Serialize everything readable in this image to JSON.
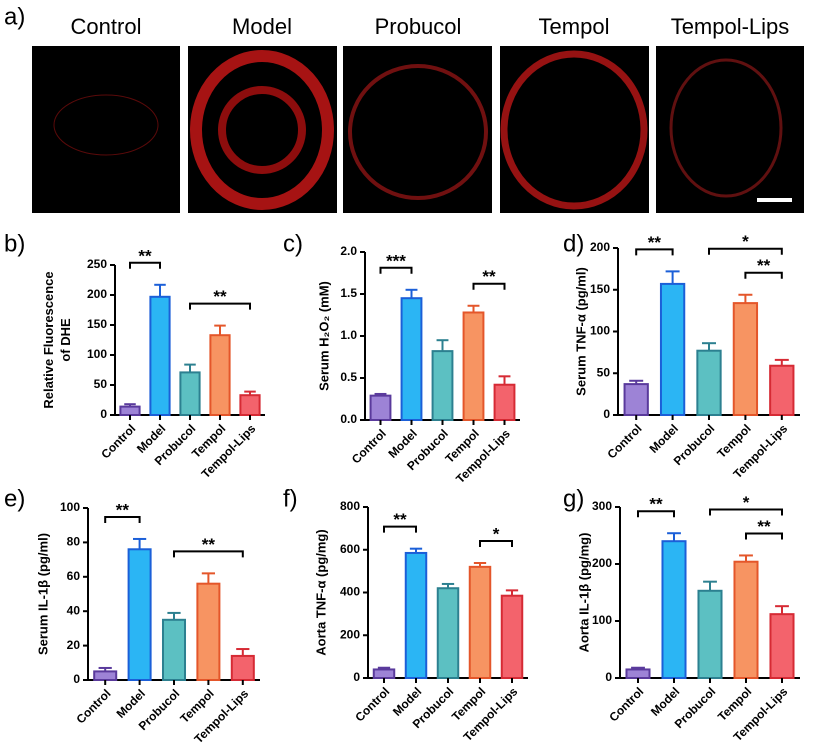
{
  "panel_a": {
    "label": "a)",
    "images": [
      "Control",
      "Model",
      "Probucol",
      "Tempol",
      "Tempol-Lips"
    ]
  },
  "chart_data": [
    {
      "type": "bar",
      "label": "b)",
      "ylabel": [
        "Relative Fluorescence",
        "of DHE"
      ],
      "categories": [
        "Control",
        "Model",
        "Probucol",
        "Tempol",
        "Tempol-Lips"
      ],
      "values": [
        14,
        197,
        71,
        133,
        33
      ],
      "errors": [
        4,
        20,
        13,
        16,
        6
      ],
      "colors": [
        "#9d83d6",
        "#2bb5f4",
        "#5cc0c2",
        "#f79462",
        "#f3636c"
      ],
      "edge_colors": [
        "#5a3a9c",
        "#1b5fd8",
        "#2c8090",
        "#e4562a",
        "#d62a34"
      ],
      "ylim": [
        0,
        250
      ],
      "yticks": [
        0,
        50,
        100,
        150,
        200,
        250
      ],
      "significance": [
        {
          "from": "Control",
          "to": "Model",
          "label": "**"
        },
        {
          "from": "Probucol",
          "to": "Tempol-Lips",
          "label": "**"
        }
      ]
    },
    {
      "type": "bar",
      "label": "c)",
      "ylabel": [
        "Serum H₂O₂ (mM)"
      ],
      "categories": [
        "Control",
        "Model",
        "Probucol",
        "Tempol",
        "Tempol-Lips"
      ],
      "values": [
        0.29,
        1.45,
        0.82,
        1.28,
        0.42
      ],
      "errors": [
        0.02,
        0.1,
        0.13,
        0.08,
        0.1
      ],
      "colors": [
        "#9d83d6",
        "#2bb5f4",
        "#5cc0c2",
        "#f79462",
        "#f3636c"
      ],
      "edge_colors": [
        "#5a3a9c",
        "#1b5fd8",
        "#2c8090",
        "#e4562a",
        "#d62a34"
      ],
      "ylim": [
        0,
        2
      ],
      "yticks": [
        {
          "value": 0,
          "label": "0.0"
        },
        0.5,
        {
          "value": 1,
          "label": "1.0"
        },
        1.5,
        {
          "value": 2,
          "label": "2.0"
        }
      ],
      "significance": [
        {
          "from": "Control",
          "to": "Model",
          "label": "***"
        },
        {
          "from": "Tempol",
          "to": "Tempol-Lips",
          "label": "**"
        }
      ]
    },
    {
      "type": "bar",
      "label": "d)",
      "ylabel": [
        "Serum TNF-α (pg/ml)"
      ],
      "categories": [
        "Control",
        "Model",
        "Probucol",
        "Tempol",
        "Tempol-Lips"
      ],
      "values": [
        37,
        157,
        77,
        134,
        59
      ],
      "errors": [
        4,
        15,
        9,
        10,
        7
      ],
      "colors": [
        "#9d83d6",
        "#2bb5f4",
        "#5cc0c2",
        "#f79462",
        "#f3636c"
      ],
      "edge_colors": [
        "#5a3a9c",
        "#1b5fd8",
        "#2c8090",
        "#e4562a",
        "#d62a34"
      ],
      "ylim": [
        0,
        200
      ],
      "yticks": [
        0,
        50,
        100,
        150,
        200
      ],
      "significance": [
        {
          "from": "Control",
          "to": "Model",
          "label": "**"
        },
        {
          "from": "Tempol",
          "to": "Tempol-Lips",
          "label": "**"
        },
        {
          "from": "Probucol",
          "to": "Tempol-Lips",
          "label": "*"
        }
      ]
    },
    {
      "type": "bar",
      "label": "e)",
      "ylabel": [
        "Serum IL-1β (pg/ml)"
      ],
      "categories": [
        "Control",
        "Model",
        "Probucol",
        "Tempol",
        "Tempol-Lips"
      ],
      "values": [
        5,
        76,
        35,
        56,
        14
      ],
      "errors": [
        2,
        6,
        4,
        6,
        4
      ],
      "colors": [
        "#9d83d6",
        "#2bb5f4",
        "#5cc0c2",
        "#f79462",
        "#f3636c"
      ],
      "edge_colors": [
        "#5a3a9c",
        "#1b5fd8",
        "#2c8090",
        "#e4562a",
        "#d62a34"
      ],
      "ylim": [
        0,
        100
      ],
      "yticks": [
        0,
        20,
        40,
        60,
        80,
        100
      ],
      "significance": [
        {
          "from": "Control",
          "to": "Model",
          "label": "**"
        },
        {
          "from": "Probucol",
          "to": "Tempol-Lips",
          "label": "**"
        }
      ]
    },
    {
      "type": "bar",
      "label": "f)",
      "ylabel": [
        "Aorta TNF-α (pg/mg)"
      ],
      "categories": [
        "Control",
        "Model",
        "Probucol",
        "Tempol",
        "Tempol-Lips"
      ],
      "values": [
        40,
        585,
        420,
        520,
        385
      ],
      "errors": [
        8,
        20,
        20,
        18,
        25
      ],
      "colors": [
        "#9d83d6",
        "#2bb5f4",
        "#5cc0c2",
        "#f79462",
        "#f3636c"
      ],
      "edge_colors": [
        "#5a3a9c",
        "#1b5fd8",
        "#2c8090",
        "#e4562a",
        "#d62a34"
      ],
      "ylim": [
        0,
        800
      ],
      "yticks": [
        0,
        200,
        400,
        600,
        800
      ],
      "significance": [
        {
          "from": "Control",
          "to": "Model",
          "label": "**"
        },
        {
          "from": "Tempol",
          "to": "Tempol-Lips",
          "label": "*"
        }
      ]
    },
    {
      "type": "bar",
      "label": "g)",
      "ylabel": [
        "Aorta IL-1β (pg/mg)"
      ],
      "categories": [
        "Control",
        "Model",
        "Probucol",
        "Tempol",
        "Tempol-Lips"
      ],
      "values": [
        15,
        240,
        153,
        204,
        112
      ],
      "errors": [
        3,
        14,
        16,
        11,
        14
      ],
      "colors": [
        "#9d83d6",
        "#2bb5f4",
        "#5cc0c2",
        "#f79462",
        "#f3636c"
      ],
      "edge_colors": [
        "#5a3a9c",
        "#1b5fd8",
        "#2c8090",
        "#e4562a",
        "#d62a34"
      ],
      "ylim": [
        0,
        300
      ],
      "yticks": [
        0,
        100,
        200,
        300
      ],
      "significance": [
        {
          "from": "Control",
          "to": "Model",
          "label": "**"
        },
        {
          "from": "Tempol",
          "to": "Tempol-Lips",
          "label": "**"
        },
        {
          "from": "Probucol",
          "to": "Tempol-Lips",
          "label": "*"
        }
      ]
    }
  ]
}
